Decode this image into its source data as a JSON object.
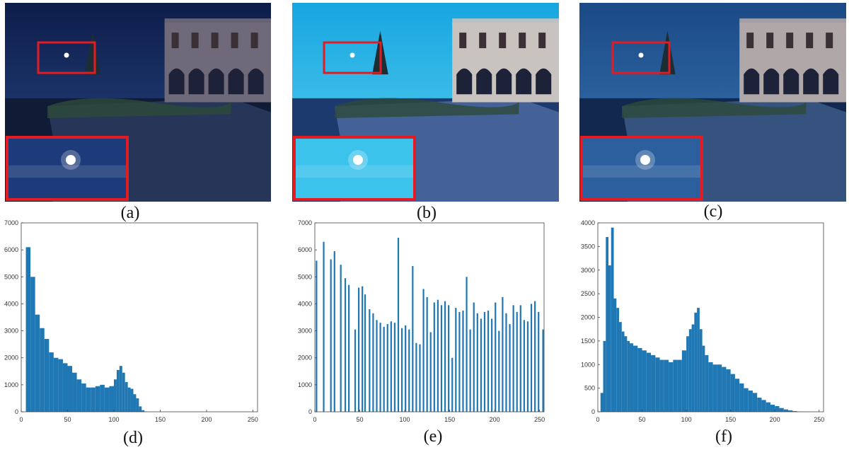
{
  "panels": {
    "a": {
      "caption": "(a)",
      "tone": "dark",
      "sky_top": "#0d1d4a",
      "sky_bottom": "#2a4a88",
      "ground": "#101b35",
      "building": "#6f6a7a",
      "inset_bg": "#1d3b7a"
    },
    "b": {
      "caption": "(b)",
      "tone": "bright",
      "sky_top": "#17a6e0",
      "sky_bottom": "#5fd2f2",
      "ground": "#1c3a6e",
      "building": "#c9c3c0",
      "inset_bg": "#3cc3ec"
    },
    "c": {
      "caption": "(c)",
      "tone": "medium",
      "sky_top": "#1b4a86",
      "sky_bottom": "#3b78b6",
      "ground": "#12284e",
      "building": "#b0a7a8",
      "inset_bg": "#2c5f9e"
    }
  },
  "histograms": {
    "d": {
      "caption": "(d)"
    },
    "e": {
      "caption": "(e)"
    },
    "f": {
      "caption": "(f)"
    }
  },
  "colors": {
    "bar": "#1f77b4",
    "frame": "#e31b23"
  },
  "chart_data": [
    {
      "type": "bar",
      "id": "d",
      "xlim": [
        0,
        255
      ],
      "ylim": [
        0,
        7000
      ],
      "xticks": [
        0,
        50,
        100,
        150,
        200,
        250
      ],
      "yticks": [
        0,
        1000,
        2000,
        3000,
        4000,
        5000,
        6000,
        7000
      ],
      "x": [
        0,
        5,
        10,
        15,
        20,
        25,
        30,
        35,
        40,
        45,
        50,
        55,
        60,
        65,
        70,
        75,
        80,
        85,
        90,
        95,
        100,
        103,
        106,
        109,
        112,
        115,
        118,
        121,
        124,
        127,
        130,
        133,
        136
      ],
      "values": [
        0,
        6100,
        5000,
        3600,
        3100,
        2700,
        2200,
        2000,
        1950,
        1800,
        1700,
        1450,
        1200,
        1050,
        900,
        900,
        950,
        1000,
        900,
        950,
        1200,
        1550,
        1700,
        1450,
        1100,
        900,
        850,
        650,
        500,
        200,
        60,
        10,
        0
      ]
    },
    {
      "type": "bar",
      "id": "e",
      "xlim": [
        0,
        255
      ],
      "ylim": [
        0,
        7000
      ],
      "xticks": [
        0,
        50,
        100,
        150,
        200,
        250
      ],
      "yticks": [
        0,
        1000,
        2000,
        3000,
        4000,
        5000,
        6000,
        7000
      ],
      "x": [
        1,
        9,
        17,
        21,
        28,
        33,
        37,
        44,
        48,
        52,
        55,
        60,
        64,
        68,
        72,
        76,
        80,
        84,
        88,
        92,
        96,
        100,
        104,
        108,
        112,
        116,
        120,
        124,
        128,
        132,
        136,
        140,
        144,
        148,
        152,
        156,
        160,
        164,
        168,
        172,
        176,
        180,
        184,
        188,
        192,
        196,
        200,
        204,
        208,
        212,
        216,
        220,
        224,
        228,
        232,
        236,
        240,
        244,
        248,
        253
      ],
      "values": [
        5600,
        6300,
        5650,
        5950,
        5450,
        4950,
        4700,
        3050,
        4600,
        4650,
        4350,
        3800,
        3650,
        3400,
        3300,
        3150,
        3250,
        3350,
        3300,
        6450,
        3100,
        3200,
        3050,
        5400,
        2550,
        2500,
        4550,
        4250,
        2950,
        4050,
        4150,
        3950,
        4100,
        3950,
        2000,
        3850,
        3700,
        3750,
        5000,
        3050,
        4050,
        3650,
        3450,
        3700,
        3750,
        3450,
        4050,
        3000,
        4250,
        3650,
        3250,
        3950,
        3700,
        3950,
        3400,
        3350,
        4000,
        4100,
        3700,
        3050
      ]
    },
    {
      "type": "bar",
      "id": "f",
      "xlim": [
        0,
        255
      ],
      "ylim": [
        0,
        4000
      ],
      "xticks": [
        0,
        50,
        100,
        150,
        200,
        250
      ],
      "yticks": [
        0,
        500,
        1000,
        1500,
        2000,
        2500,
        3000,
        3500,
        4000
      ],
      "x": [
        0,
        3,
        6,
        9,
        12,
        15,
        18,
        21,
        24,
        27,
        30,
        33,
        36,
        40,
        45,
        50,
        55,
        60,
        65,
        70,
        75,
        80,
        85,
        90,
        95,
        100,
        103,
        106,
        109,
        112,
        115,
        118,
        121,
        125,
        130,
        135,
        140,
        145,
        150,
        155,
        160,
        165,
        170,
        175,
        180,
        185,
        190,
        195,
        200,
        205,
        210,
        215,
        220,
        225,
        230,
        235
      ],
      "values": [
        0,
        400,
        1500,
        3700,
        3100,
        3900,
        2400,
        2200,
        1900,
        1700,
        1600,
        1500,
        1450,
        1400,
        1350,
        1300,
        1250,
        1200,
        1150,
        1100,
        1100,
        1050,
        1100,
        1100,
        1300,
        1600,
        1750,
        1850,
        2100,
        2200,
        1750,
        1400,
        1200,
        1050,
        1000,
        1000,
        950,
        900,
        800,
        700,
        600,
        500,
        450,
        400,
        300,
        250,
        200,
        150,
        120,
        80,
        50,
        30,
        15,
        5,
        2,
        0
      ]
    }
  ]
}
